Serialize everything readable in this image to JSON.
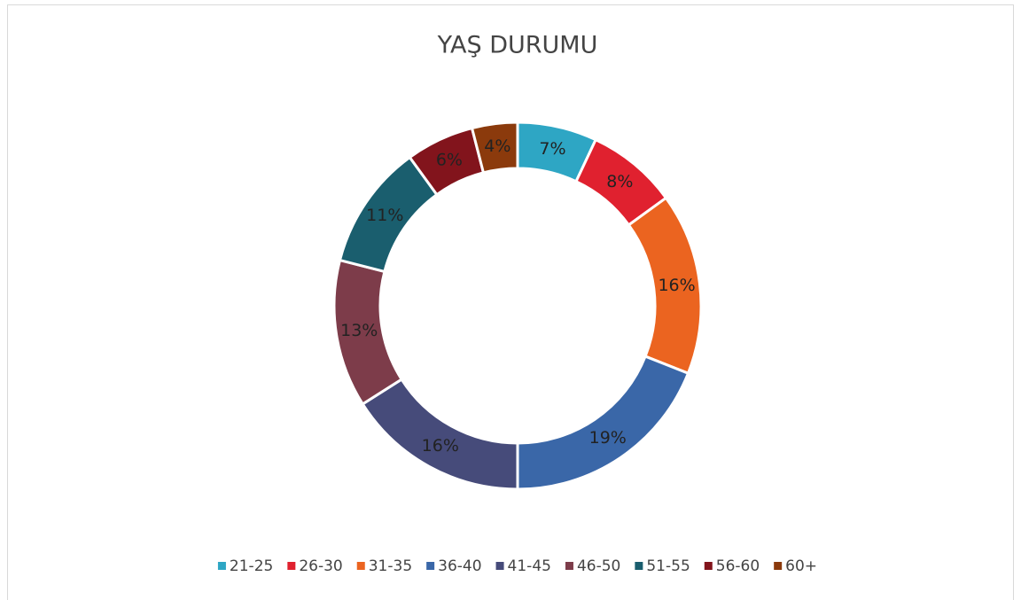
{
  "chart_data": {
    "type": "donut",
    "title": "YAŞ DURUMU",
    "categories": [
      "21-25",
      "26-30",
      "31-35",
      "36-40",
      "41-45",
      "46-50",
      "51-55",
      "56-60",
      "60+"
    ],
    "values": [
      7,
      8,
      16,
      19,
      16,
      13,
      11,
      6,
      4
    ],
    "value_labels": [
      "7%",
      "8%",
      "16%",
      "19%",
      "16%",
      "13%",
      "11%",
      "6%",
      "4%"
    ],
    "colors": [
      "#2ea6c4",
      "#e0212f",
      "#eb6420",
      "#3a67a8",
      "#464b7a",
      "#7d3c4a",
      "#1a5e6e",
      "#82141c",
      "#8b3a0c"
    ],
    "legend": "bottom"
  }
}
